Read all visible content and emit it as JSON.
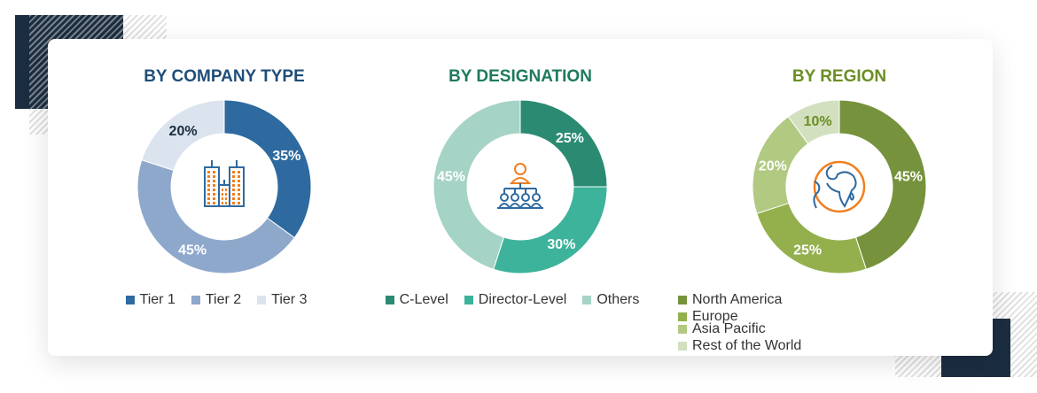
{
  "chart_data": [
    {
      "type": "pie",
      "title": "BY COMPANY TYPE",
      "title_color": "#1f4e79",
      "categories": [
        "Tier 1",
        "Tier 2",
        "Tier 3"
      ],
      "values": [
        35,
        45,
        20
      ],
      "labels": [
        "35%",
        "45%",
        "20%"
      ],
      "colors": [
        "#2e6aa0",
        "#8ea8cc",
        "#dbe3ee"
      ],
      "label_colors": [
        "#ffffff",
        "#ffffff",
        "#1b2d40"
      ],
      "icon": "buildings-icon",
      "legend_placement": "bottom"
    },
    {
      "type": "pie",
      "title": "BY DESIGNATION",
      "title_color": "#1e7a5e",
      "categories": [
        "C-Level",
        "Director-Level",
        "Others"
      ],
      "values": [
        25,
        30,
        45
      ],
      "labels": [
        "25%",
        "30%",
        "45%"
      ],
      "colors": [
        "#2a8a72",
        "#3cb39a",
        "#a5d3c6"
      ],
      "label_colors": [
        "#ffffff",
        "#ffffff",
        "#ffffff"
      ],
      "icon": "org-hierarchy-icon",
      "legend_placement": "bottom"
    },
    {
      "type": "pie",
      "title": "BY REGION",
      "title_color": "#6b8e23",
      "categories": [
        "North America",
        "Europe",
        "Asia Pacific",
        "Rest of the World"
      ],
      "values": [
        45,
        25,
        20,
        10
      ],
      "labels": [
        "45%",
        "25%",
        "20%",
        "10%"
      ],
      "colors": [
        "#76923c",
        "#93b04c",
        "#b1c981",
        "#d3e0bf"
      ],
      "label_colors": [
        "#ffffff",
        "#ffffff",
        "#ffffff",
        "#6b8e23"
      ],
      "icon": "globe-icon",
      "legend_placement": "bottom"
    }
  ]
}
